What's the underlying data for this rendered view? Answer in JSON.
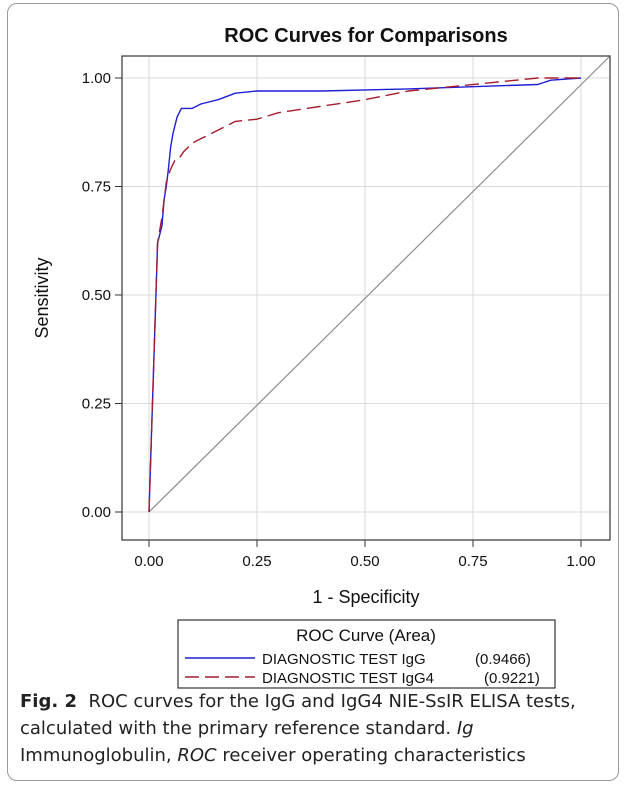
{
  "colors": {
    "igg": "#1f1fd6",
    "igg4": "#a61c2e",
    "grid": "#dadada",
    "diagonal": "#8c8c8c"
  },
  "chart_data": {
    "type": "line",
    "title": "ROC Curves for Comparisons",
    "xlabel": "1 - Specificity",
    "ylabel": "Sensitivity",
    "xlim": [
      0,
      1
    ],
    "ylim": [
      0,
      1
    ],
    "xticks": [
      "0.00",
      "0.25",
      "0.50",
      "0.75",
      "1.00"
    ],
    "yticks": [
      "0.00",
      "0.25",
      "0.50",
      "0.75",
      "1.00"
    ],
    "grid": true,
    "reference_line": "diagonal",
    "legend": {
      "title": "ROC Curve (Area)",
      "placement": "bottom",
      "entries": [
        {
          "label": "DIAGNOSTIC TEST IgG",
          "area": "(0.9466)"
        },
        {
          "label": "DIAGNOSTIC TEST IgG4",
          "area": "(0.9221)"
        }
      ]
    },
    "series": [
      {
        "name": "DIAGNOSTIC TEST IgG",
        "style": "solid",
        "x": [
          0,
          0.02,
          0.03,
          0.035,
          0.04,
          0.045,
          0.05,
          0.055,
          0.06,
          0.065,
          0.07,
          0.075,
          0.08,
          0.1,
          0.12,
          0.16,
          0.2,
          0.25,
          0.4,
          0.6,
          0.75,
          0.9,
          0.93,
          1.0
        ],
        "y": [
          0,
          0.62,
          0.66,
          0.72,
          0.75,
          0.79,
          0.84,
          0.87,
          0.89,
          0.91,
          0.92,
          0.93,
          0.93,
          0.93,
          0.94,
          0.95,
          0.965,
          0.97,
          0.97,
          0.975,
          0.98,
          0.985,
          0.995,
          1.0
        ]
      },
      {
        "name": "DIAGNOSTIC TEST IgG4",
        "style": "dashed",
        "x": [
          0,
          0.02,
          0.03,
          0.04,
          0.05,
          0.06,
          0.07,
          0.08,
          0.1,
          0.12,
          0.15,
          0.18,
          0.2,
          0.25,
          0.3,
          0.4,
          0.5,
          0.6,
          0.7,
          0.8,
          0.9,
          1.0
        ],
        "y": [
          0,
          0.62,
          0.68,
          0.76,
          0.79,
          0.81,
          0.815,
          0.83,
          0.85,
          0.86,
          0.875,
          0.89,
          0.9,
          0.905,
          0.92,
          0.935,
          0.95,
          0.97,
          0.98,
          0.99,
          1.0,
          1.0
        ]
      }
    ]
  },
  "caption": {
    "fig_label": "Fig. 2",
    "text1": "ROC curves for the IgG and IgG4 NIE-SsIR ELISA tests, calculated with the primary reference standard.",
    "abbr1": "Ig",
    "text2": "Immunoglobulin,",
    "abbr2": "ROC",
    "text3": "receiver operating characteristics"
  }
}
